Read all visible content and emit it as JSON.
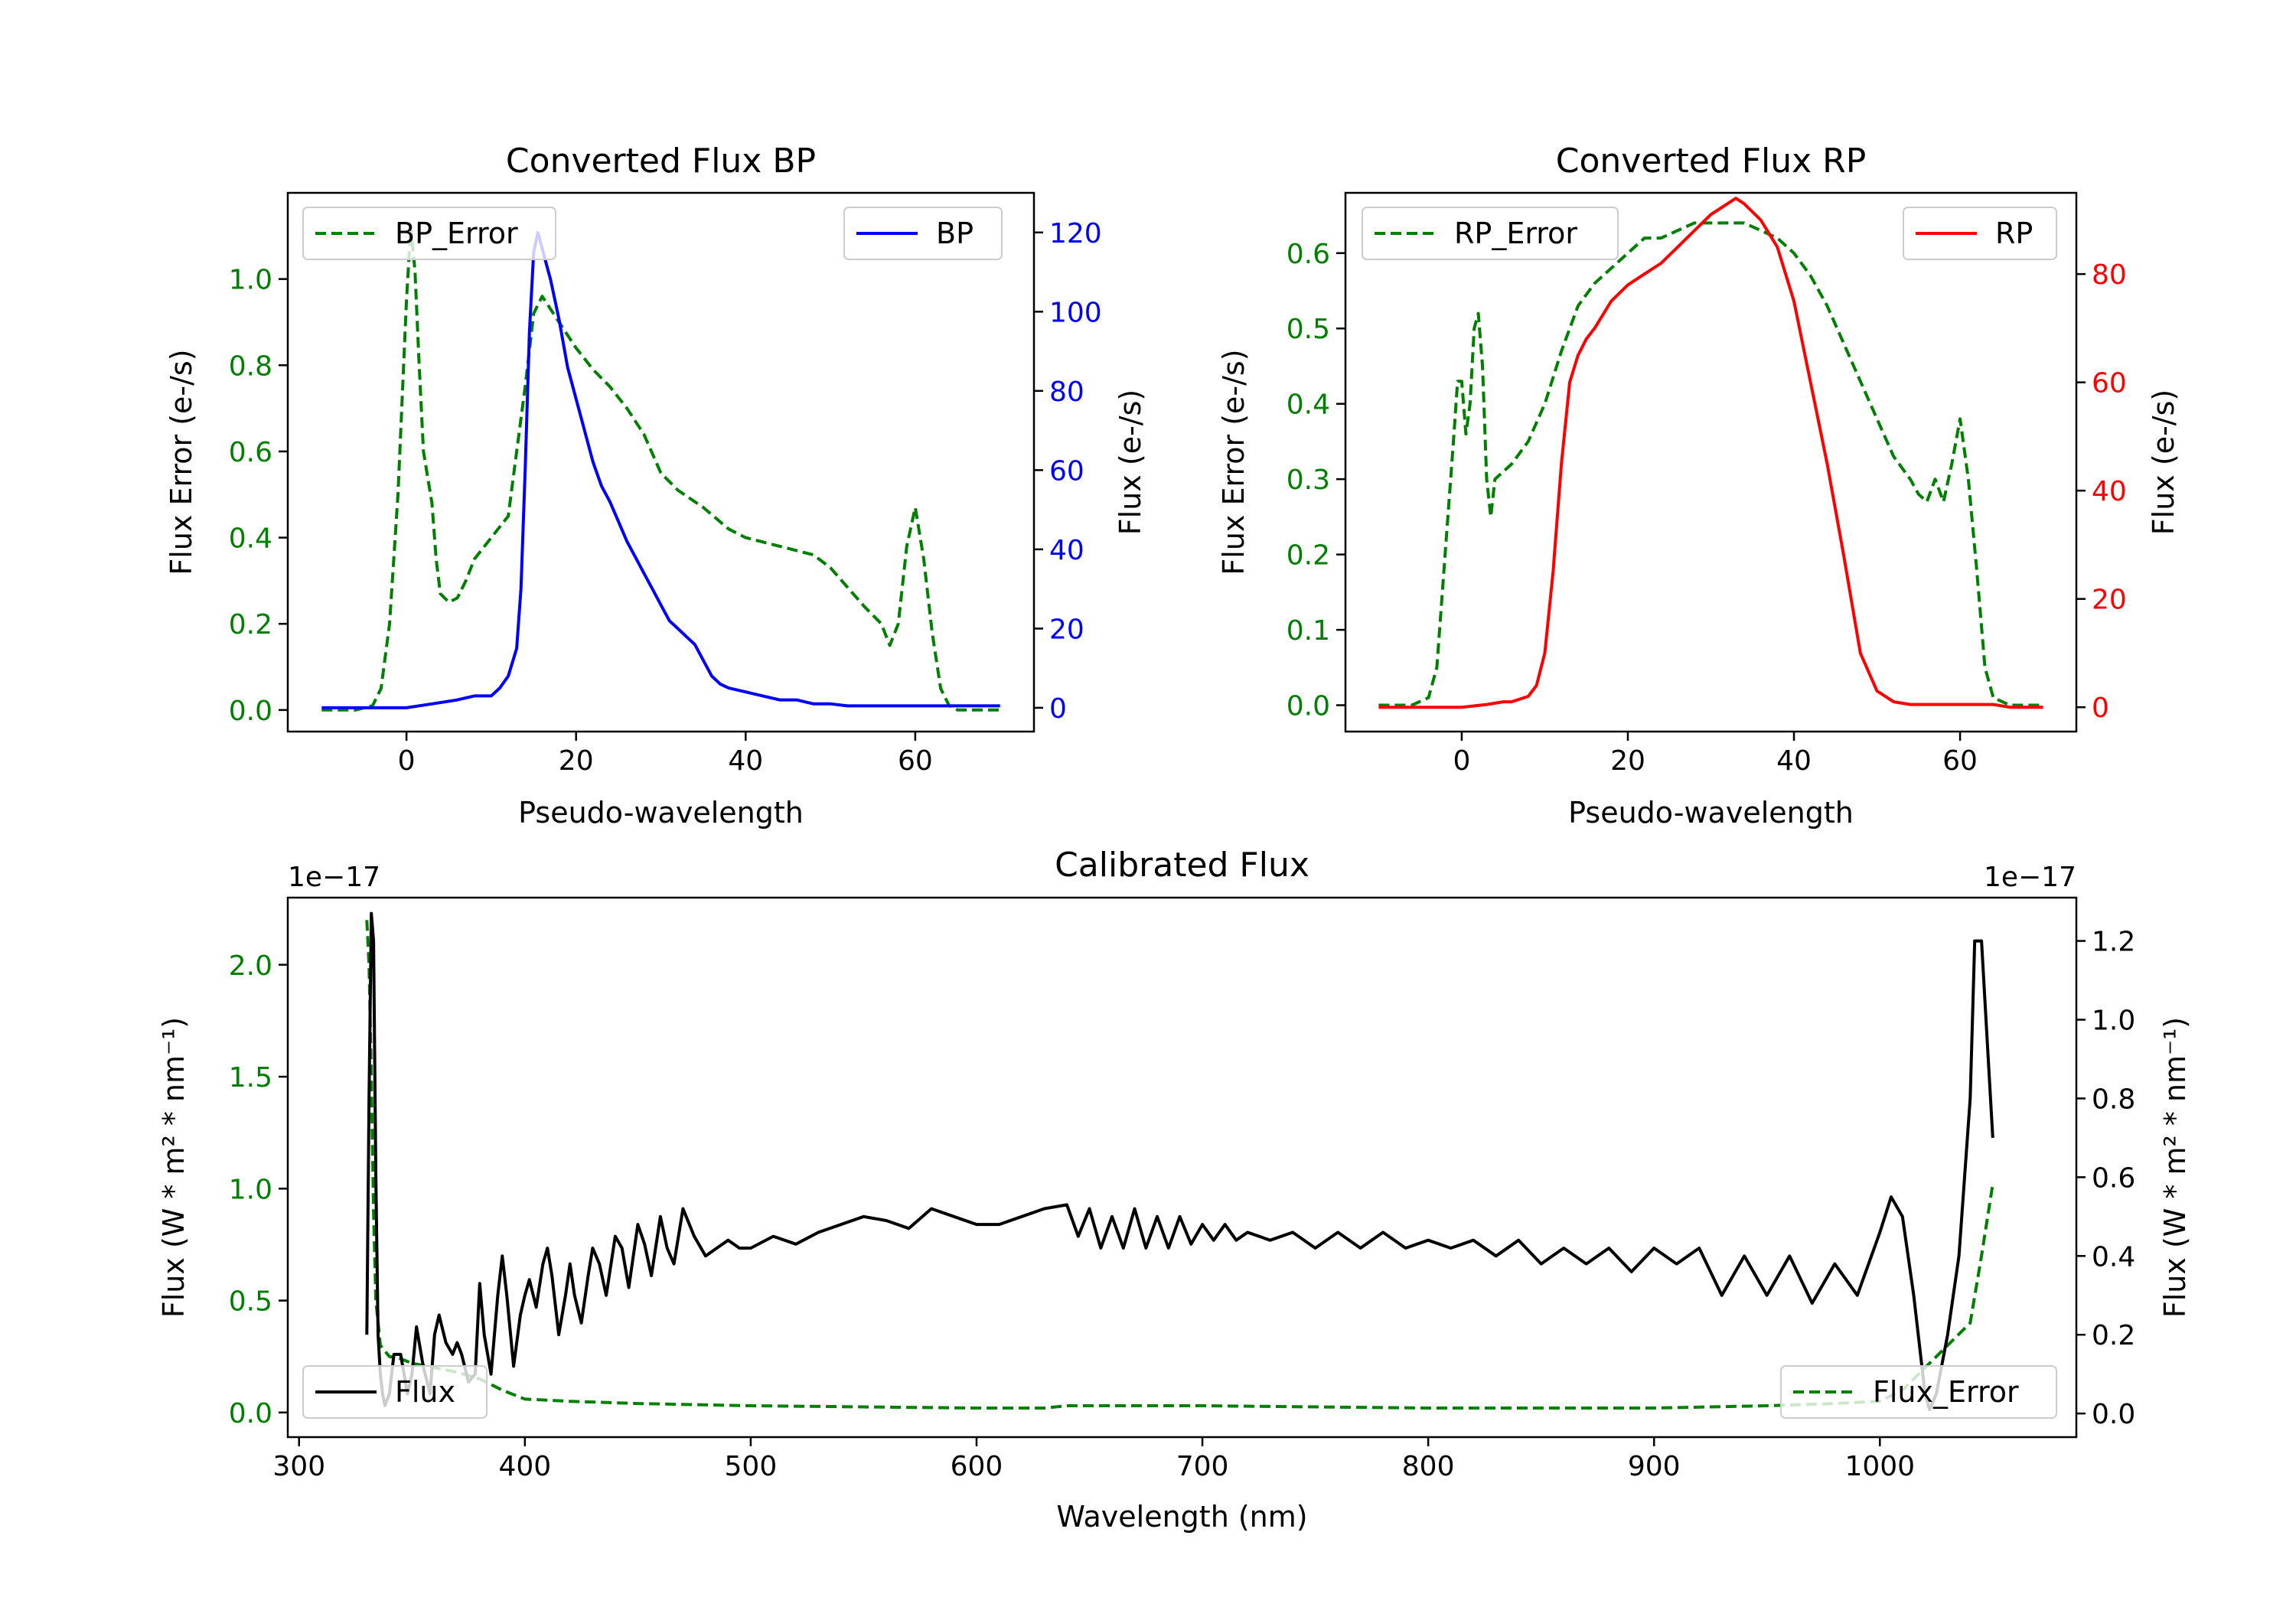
{
  "chart_data": [
    {
      "type": "line",
      "title": "Converted Flux BP",
      "xlabel": "Pseudo-wavelength",
      "xlim": [
        -14,
        74
      ],
      "xticks": [
        0,
        20,
        40,
        60
      ],
      "left_axis": {
        "label": "Flux Error (e-/s)",
        "color": "#008000",
        "ylim": [
          -0.05,
          1.2
        ],
        "ticks": [
          "0.0",
          "0.2",
          "0.4",
          "0.6",
          "0.8",
          "1.0"
        ]
      },
      "right_axis": {
        "label": "Flux (e-/s)",
        "color": "#0000ff",
        "ylim": [
          -6,
          130
        ],
        "ticks": [
          "0",
          "20",
          "40",
          "60",
          "80",
          "100",
          "120"
        ]
      },
      "legend_left": "BP_Error",
      "legend_right": "BP",
      "series": [
        {
          "name": "BP_Error",
          "axis": "left",
          "style": "dashed",
          "color": "#008000",
          "x": [
            -10,
            -8,
            -6,
            -4,
            -3,
            -2,
            -1,
            0,
            0.5,
            1,
            1.5,
            2,
            3,
            3.5,
            4,
            5,
            6,
            7,
            8,
            10,
            12,
            13,
            14,
            15,
            16,
            17,
            18,
            19,
            20,
            22,
            24,
            26,
            28,
            30,
            32,
            35,
            38,
            40,
            44,
            48,
            50,
            54,
            56,
            57,
            58,
            59,
            60,
            61,
            62,
            63,
            64,
            65,
            66,
            68,
            70
          ],
          "y": [
            0,
            0,
            0,
            0.01,
            0.05,
            0.2,
            0.5,
            0.95,
            1.12,
            1.02,
            0.8,
            0.6,
            0.48,
            0.35,
            0.27,
            0.25,
            0.26,
            0.3,
            0.35,
            0.4,
            0.45,
            0.6,
            0.75,
            0.92,
            0.96,
            0.93,
            0.9,
            0.87,
            0.84,
            0.79,
            0.75,
            0.7,
            0.64,
            0.55,
            0.51,
            0.47,
            0.42,
            0.4,
            0.38,
            0.36,
            0.33,
            0.24,
            0.2,
            0.15,
            0.2,
            0.38,
            0.47,
            0.35,
            0.18,
            0.05,
            0.01,
            0,
            0,
            0,
            0
          ]
        },
        {
          "name": "BP",
          "axis": "right",
          "style": "solid",
          "color": "#0000ff",
          "x": [
            -10,
            -5,
            0,
            3,
            6,
            8,
            10,
            11,
            12,
            13,
            13.5,
            14,
            14.5,
            15,
            15.5,
            16,
            16.5,
            17,
            18,
            19,
            20,
            21,
            22,
            23,
            24,
            25,
            26,
            27,
            28,
            29,
            30,
            31,
            32,
            33,
            34,
            35,
            36,
            37,
            38,
            40,
            42,
            44,
            46,
            48,
            50,
            52,
            54,
            56,
            58,
            60,
            62,
            64,
            66,
            68,
            70
          ],
          "y": [
            0,
            0,
            0,
            1,
            2,
            3,
            3,
            5,
            8,
            15,
            30,
            60,
            95,
            115,
            120,
            116,
            112,
            108,
            98,
            86,
            78,
            70,
            62,
            56,
            52,
            47,
            42,
            38,
            34,
            30,
            26,
            22,
            20,
            18,
            16,
            12,
            8,
            6,
            5,
            4,
            3,
            2,
            2,
            1,
            1,
            0.5,
            0.5,
            0.5,
            0.5,
            0.5,
            0.5,
            0.5,
            0.5,
            0.5,
            0.5
          ]
        }
      ]
    },
    {
      "type": "line",
      "title": "Converted Flux RP",
      "xlabel": "Pseudo-wavelength",
      "xlim": [
        -14,
        74
      ],
      "xticks": [
        0,
        20,
        40,
        60
      ],
      "left_axis": {
        "label": "Flux Error (e-/s)",
        "color": "#008000",
        "ylim": [
          -0.035,
          0.68
        ],
        "ticks": [
          "0.0",
          "0.1",
          "0.2",
          "0.3",
          "0.4",
          "0.5",
          "0.6"
        ]
      },
      "right_axis": {
        "label": "Flux (e-/s)",
        "color": "#ff0000",
        "ylim": [
          -4.5,
          95
        ],
        "ticks": [
          "0",
          "20",
          "40",
          "60",
          "80"
        ]
      },
      "legend_left": "RP_Error",
      "legend_right": "RP",
      "series": [
        {
          "name": "RP_Error",
          "axis": "left",
          "style": "dashed",
          "color": "#008000",
          "x": [
            -10,
            -6,
            -4,
            -3,
            -2,
            -1,
            -0.5,
            0,
            0.5,
            1,
            1.5,
            2,
            2.5,
            3,
            3.5,
            4,
            5,
            6,
            8,
            10,
            12,
            14,
            16,
            18,
            20,
            22,
            24,
            26,
            28,
            30,
            32,
            34,
            36,
            38,
            40,
            42,
            44,
            46,
            48,
            50,
            52,
            54,
            55,
            56,
            57,
            58,
            59,
            60,
            61,
            62,
            63,
            64,
            66,
            70
          ],
          "y": [
            0,
            0,
            0.01,
            0.05,
            0.2,
            0.35,
            0.43,
            0.43,
            0.36,
            0.4,
            0.5,
            0.52,
            0.45,
            0.3,
            0.25,
            0.3,
            0.31,
            0.32,
            0.35,
            0.4,
            0.47,
            0.53,
            0.56,
            0.58,
            0.6,
            0.62,
            0.62,
            0.63,
            0.64,
            0.64,
            0.64,
            0.64,
            0.63,
            0.62,
            0.6,
            0.57,
            0.53,
            0.48,
            0.43,
            0.38,
            0.33,
            0.3,
            0.28,
            0.27,
            0.3,
            0.27,
            0.32,
            0.38,
            0.3,
            0.18,
            0.05,
            0.01,
            0,
            0
          ]
        },
        {
          "name": "RP",
          "axis": "right",
          "style": "solid",
          "color": "#ff0000",
          "x": [
            -10,
            -5,
            0,
            3,
            5,
            6,
            8,
            9,
            10,
            11,
            12,
            13,
            14,
            15,
            16,
            18,
            20,
            22,
            24,
            26,
            28,
            30,
            32,
            33,
            34,
            36,
            38,
            40,
            42,
            44,
            46,
            48,
            50,
            52,
            54,
            56,
            58,
            60,
            62,
            64,
            66,
            70
          ],
          "y": [
            0,
            0,
            0,
            0.5,
            1,
            1,
            2,
            4,
            10,
            25,
            45,
            60,
            65,
            68,
            70,
            75,
            78,
            80,
            82,
            85,
            88,
            91,
            93,
            94,
            93,
            90,
            85,
            75,
            60,
            45,
            28,
            10,
            3,
            1,
            0.5,
            0.5,
            0.5,
            0.5,
            0.5,
            0.5,
            0,
            0
          ]
        }
      ]
    },
    {
      "type": "line",
      "title": "Calibrated Flux",
      "xlabel": "Wavelength (nm)",
      "xlim": [
        295,
        1087
      ],
      "xticks": [
        300,
        400,
        500,
        600,
        700,
        800,
        900,
        1000
      ],
      "left_axis": {
        "label": "Flux (W * m² * nm⁻¹)",
        "color": "#008000",
        "ylim": [
          -0.11,
          2.3
        ],
        "ticks": [
          "0.0",
          "0.5",
          "1.0",
          "1.5",
          "2.0"
        ],
        "offset": "1e−17"
      },
      "right_axis": {
        "label": "Flux (W * m² * nm⁻¹)",
        "color": "#000000",
        "ylim": [
          -0.06,
          1.31
        ],
        "ticks": [
          "0.0",
          "0.2",
          "0.4",
          "0.6",
          "0.8",
          "1.0",
          "1.2"
        ],
        "offset": "1e−17"
      },
      "legend_left": "Flux",
      "legend_right": "Flux_Error",
      "series": [
        {
          "name": "Flux_Error",
          "axis": "left",
          "style": "dashed",
          "color": "#008000",
          "x": [
            330,
            331,
            332,
            333,
            334,
            336,
            340,
            345,
            350,
            360,
            370,
            380,
            390,
            400,
            420,
            450,
            500,
            600,
            630,
            640,
            700,
            800,
            900,
            950,
            980,
            1000,
            1010,
            1020,
            1030,
            1040,
            1045,
            1050
          ],
          "y": [
            2.2,
            2.0,
            1.5,
            0.9,
            0.5,
            0.3,
            0.25,
            0.24,
            0.22,
            0.2,
            0.18,
            0.15,
            0.1,
            0.06,
            0.05,
            0.04,
            0.03,
            0.02,
            0.02,
            0.03,
            0.03,
            0.02,
            0.02,
            0.03,
            0.04,
            0.05,
            0.1,
            0.2,
            0.3,
            0.4,
            0.7,
            1.02
          ]
        },
        {
          "name": "Flux",
          "axis": "right",
          "style": "solid",
          "color": "#000000",
          "x": [
            330,
            331,
            332,
            333,
            334,
            335,
            336,
            337,
            338,
            340,
            342,
            345,
            348,
            350,
            352,
            355,
            358,
            360,
            362,
            365,
            368,
            370,
            372,
            375,
            378,
            380,
            382,
            385,
            388,
            390,
            392,
            395,
            398,
            400,
            402,
            405,
            408,
            410,
            412,
            415,
            418,
            420,
            422,
            425,
            428,
            430,
            433,
            436,
            440,
            443,
            446,
            450,
            453,
            456,
            460,
            463,
            466,
            470,
            475,
            480,
            485,
            490,
            495,
            500,
            510,
            520,
            530,
            540,
            550,
            560,
            570,
            580,
            590,
            600,
            610,
            620,
            630,
            640,
            645,
            650,
            655,
            660,
            665,
            670,
            675,
            680,
            685,
            690,
            695,
            700,
            705,
            710,
            715,
            720,
            730,
            740,
            750,
            760,
            770,
            780,
            790,
            800,
            810,
            820,
            830,
            840,
            850,
            860,
            870,
            880,
            890,
            900,
            910,
            920,
            930,
            940,
            950,
            960,
            970,
            980,
            990,
            1000,
            1005,
            1010,
            1015,
            1020,
            1022,
            1025,
            1030,
            1035,
            1040,
            1042,
            1045,
            1048,
            1050
          ],
          "y": [
            0.2,
            0.8,
            1.27,
            1.2,
            0.6,
            0.2,
            0.1,
            0.05,
            0.02,
            0.05,
            0.15,
            0.15,
            0.05,
            0.1,
            0.22,
            0.12,
            0.05,
            0.2,
            0.25,
            0.18,
            0.15,
            0.18,
            0.15,
            0.08,
            0.1,
            0.33,
            0.2,
            0.1,
            0.3,
            0.4,
            0.3,
            0.12,
            0.25,
            0.3,
            0.34,
            0.27,
            0.38,
            0.42,
            0.35,
            0.2,
            0.3,
            0.38,
            0.3,
            0.23,
            0.35,
            0.42,
            0.38,
            0.3,
            0.45,
            0.42,
            0.32,
            0.48,
            0.43,
            0.35,
            0.5,
            0.42,
            0.38,
            0.52,
            0.45,
            0.4,
            0.42,
            0.44,
            0.42,
            0.42,
            0.45,
            0.43,
            0.46,
            0.48,
            0.5,
            0.49,
            0.47,
            0.52,
            0.5,
            0.48,
            0.48,
            0.5,
            0.52,
            0.53,
            0.45,
            0.52,
            0.42,
            0.5,
            0.42,
            0.52,
            0.42,
            0.5,
            0.42,
            0.5,
            0.43,
            0.48,
            0.44,
            0.48,
            0.44,
            0.46,
            0.44,
            0.46,
            0.42,
            0.46,
            0.42,
            0.46,
            0.42,
            0.44,
            0.42,
            0.44,
            0.4,
            0.44,
            0.38,
            0.42,
            0.38,
            0.42,
            0.36,
            0.42,
            0.38,
            0.42,
            0.3,
            0.4,
            0.3,
            0.4,
            0.28,
            0.38,
            0.3,
            0.46,
            0.55,
            0.5,
            0.3,
            0.05,
            0.01,
            0.05,
            0.2,
            0.4,
            0.8,
            1.2,
            1.2,
            0.9,
            0.7
          ]
        }
      ]
    }
  ]
}
